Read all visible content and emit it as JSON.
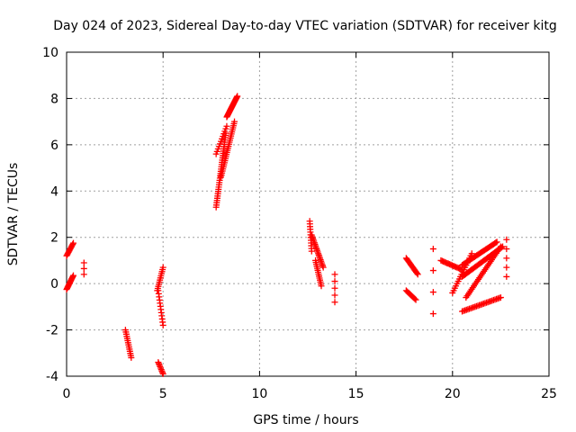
{
  "chart_data": {
    "type": "scatter",
    "title": "Day 024 of 2023, Sidereal Day-to-day VTEC variation (SDTVAR) for receiver kitg",
    "xlabel": "GPS time / hours",
    "ylabel": "SDTVAR / TECUs",
    "xlim": [
      0,
      25
    ],
    "ylim": [
      -4,
      10
    ],
    "xticks": [
      "0",
      "5",
      "10",
      "15",
      "20",
      "25"
    ],
    "yticks": [
      "-4",
      "-2",
      "0",
      "2",
      "4",
      "6",
      "8",
      "10"
    ],
    "grid": true,
    "marker": "+",
    "color": "#ff0000",
    "segments": [
      {
        "x0": 0.0,
        "x1": 0.35,
        "y0": 1.2,
        "y1": 1.75,
        "n": 12
      },
      {
        "x0": 0.0,
        "x1": 0.35,
        "y0": -0.25,
        "y1": 0.35,
        "n": 14
      },
      {
        "x0": 0.9,
        "x1": 0.9,
        "y0": 0.4,
        "y1": 0.9,
        "n": 3
      },
      {
        "x0": 3.05,
        "x1": 3.35,
        "y0": -2.0,
        "y1": -3.2,
        "n": 14
      },
      {
        "x0": 4.75,
        "x1": 5.0,
        "y0": -3.4,
        "y1": -3.9,
        "n": 9
      },
      {
        "x0": 4.7,
        "x1": 5.0,
        "y0": -0.3,
        "y1": 0.7,
        "n": 12
      },
      {
        "x0": 4.75,
        "x1": 5.0,
        "y0": -0.3,
        "y1": -1.8,
        "n": 12
      },
      {
        "x0": 7.75,
        "x1": 8.25,
        "y0": 3.3,
        "y1": 6.5,
        "n": 34
      },
      {
        "x0": 8.0,
        "x1": 8.7,
        "y0": 4.6,
        "y1": 7.0,
        "n": 28
      },
      {
        "x0": 7.75,
        "x1": 8.3,
        "y0": 5.6,
        "y1": 6.8,
        "n": 12
      },
      {
        "x0": 8.3,
        "x1": 8.85,
        "y0": 7.2,
        "y1": 8.1,
        "n": 24
      },
      {
        "x0": 12.6,
        "x1": 12.7,
        "y0": 2.7,
        "y1": 1.4,
        "n": 12
      },
      {
        "x0": 12.7,
        "x1": 13.3,
        "y0": 2.1,
        "y1": 0.7,
        "n": 22
      },
      {
        "x0": 12.9,
        "x1": 13.2,
        "y0": 1.0,
        "y1": -0.1,
        "n": 14
      },
      {
        "x0": 13.9,
        "x1": 13.9,
        "y0": 0.4,
        "y1": -0.8,
        "n": 5
      },
      {
        "x0": 17.6,
        "x1": 18.2,
        "y0": 1.1,
        "y1": 0.4,
        "n": 16
      },
      {
        "x0": 17.6,
        "x1": 18.1,
        "y0": -0.3,
        "y1": -0.7,
        "n": 10
      },
      {
        "x0": 19.0,
        "x1": 19.0,
        "y0": 1.5,
        "y1": -1.3,
        "n": 4
      },
      {
        "x0": 19.4,
        "x1": 20.5,
        "y0": 1.0,
        "y1": 0.6,
        "n": 18
      },
      {
        "x0": 20.5,
        "x1": 22.3,
        "y0": 0.8,
        "y1": 1.8,
        "n": 32
      },
      {
        "x0": 20.5,
        "x1": 22.6,
        "y0": 0.3,
        "y1": 1.6,
        "n": 36
      },
      {
        "x0": 20.0,
        "x1": 21.0,
        "y0": -0.4,
        "y1": 1.3,
        "n": 18
      },
      {
        "x0": 20.7,
        "x1": 22.5,
        "y0": -0.6,
        "y1": 1.6,
        "n": 32
      },
      {
        "x0": 20.5,
        "x1": 22.5,
        "y0": -1.2,
        "y1": -0.6,
        "n": 28
      },
      {
        "x0": 22.8,
        "x1": 22.8,
        "y0": 1.9,
        "y1": 0.3,
        "n": 5
      }
    ]
  }
}
